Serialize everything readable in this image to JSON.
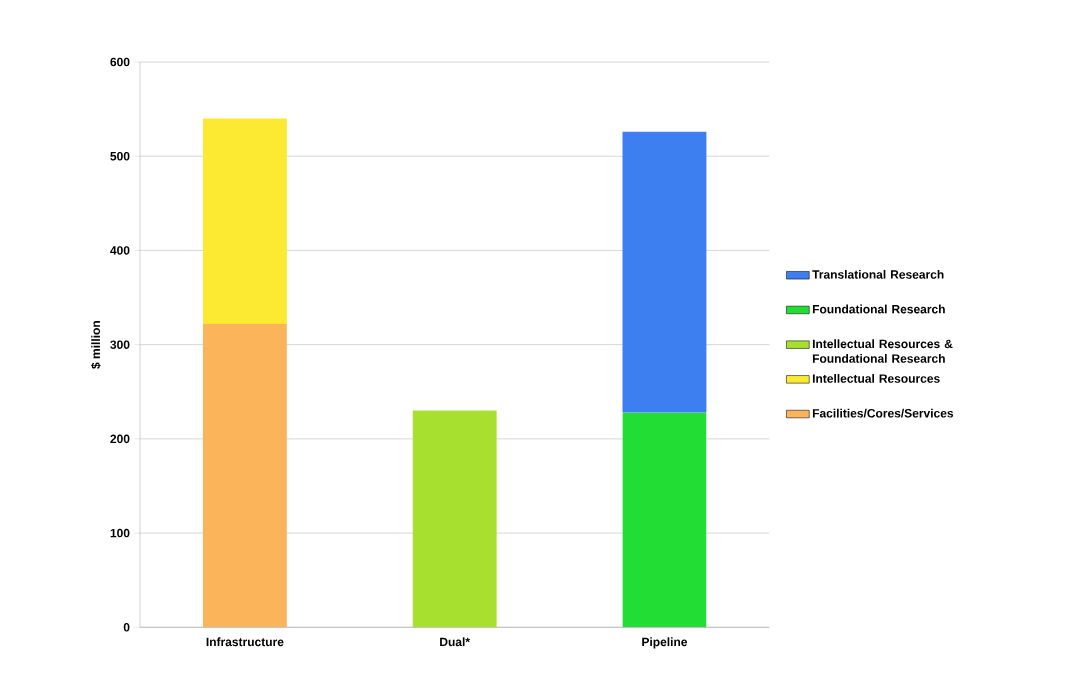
{
  "chart_data": {
    "type": "bar",
    "stacked": true,
    "ylabel": "$ million",
    "categories": [
      "Infrastructure",
      "Dual*",
      "Pipeline"
    ],
    "series": [
      {
        "name": "Facilities/Cores/Services",
        "color": "#fbb45a",
        "values": [
          322,
          null,
          null
        ]
      },
      {
        "name": "Intellectual Resources",
        "color": "#fbe932",
        "values": [
          218,
          null,
          null
        ]
      },
      {
        "name": "Intellectual Resources & Foundational Research",
        "color": "#a8e030",
        "values": [
          null,
          230,
          null
        ]
      },
      {
        "name": "Foundational Research",
        "color": "#22dd33",
        "values": [
          null,
          null,
          228
        ]
      },
      {
        "name": "Translational Research",
        "color": "#3d7ef0",
        "values": [
          null,
          null,
          298
        ]
      }
    ],
    "ylim": [
      0,
      600
    ],
    "yticks": [
      0,
      100,
      200,
      300,
      400,
      500,
      600
    ],
    "grid": "y",
    "legend": "right"
  }
}
